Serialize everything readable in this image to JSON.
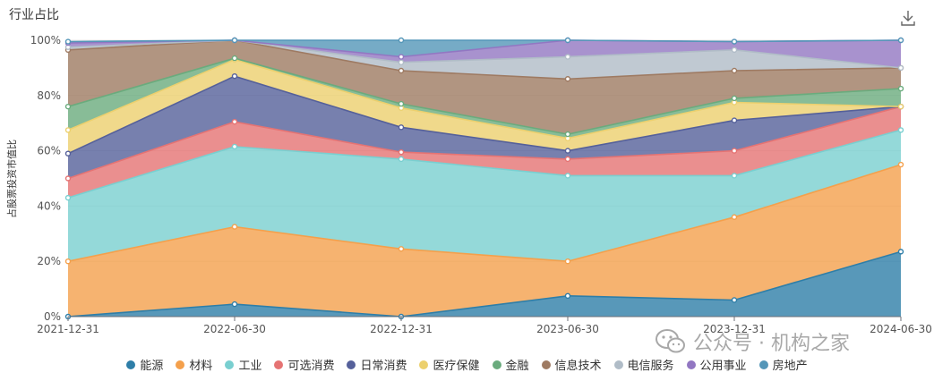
{
  "header": {
    "title": "行业占比",
    "download_icon": "download-icon"
  },
  "watermark": {
    "text": "公众号 · 机构之家",
    "icon": "wechat-icon"
  },
  "chart_data": {
    "type": "area",
    "stacked": true,
    "ylabel": "占股票投资市值比",
    "ylim": [
      0,
      100
    ],
    "yticks": [
      "0%",
      "20%",
      "40%",
      "60%",
      "80%",
      "100%"
    ],
    "x": [
      "2021-12-31",
      "2022-06-30",
      "2022-12-31",
      "2023-06-30",
      "2023-12-31",
      "2024-06-30"
    ],
    "series": [
      {
        "name": "能源",
        "color": "#2e7ea8",
        "values": [
          0,
          4.5,
          0,
          7.5,
          6,
          23.5
        ]
      },
      {
        "name": "材料",
        "color": "#f4a04c",
        "values": [
          20,
          28,
          24.5,
          12.5,
          30,
          31.5
        ]
      },
      {
        "name": "工业",
        "color": "#79cfd0",
        "values": [
          23,
          29,
          32.5,
          31,
          15,
          12.5
        ]
      },
      {
        "name": "可选消费",
        "color": "#e57373",
        "values": [
          7,
          9,
          2.5,
          6,
          9,
          8.5
        ]
      },
      {
        "name": "日常消费",
        "color": "#55609a",
        "values": [
          9,
          16.5,
          9,
          3,
          11,
          0
        ]
      },
      {
        "name": "医疗保健",
        "color": "#ecd06e",
        "values": [
          8.5,
          6,
          7,
          4.5,
          6.5,
          0
        ]
      },
      {
        "name": "金融",
        "color": "#6aab7d",
        "values": [
          8.5,
          0.5,
          1.5,
          1.5,
          1.5,
          6.5
        ]
      },
      {
        "name": "信息技术",
        "color": "#9e7a62",
        "values": [
          20.5,
          6.5,
          12,
          20,
          10,
          7.5
        ]
      },
      {
        "name": "电信服务",
        "color": "#b0bcc7",
        "values": [
          1,
          0,
          3,
          8,
          7.5,
          0
        ]
      },
      {
        "name": "公用事业",
        "color": "#9277c2",
        "values": [
          1.5,
          0,
          2,
          6,
          3,
          10
        ]
      },
      {
        "name": "房地产",
        "color": "#5496b8",
        "values": [
          0.5,
          0,
          6,
          0,
          0,
          0
        ]
      }
    ],
    "legend_position": "bottom",
    "grid": true
  }
}
